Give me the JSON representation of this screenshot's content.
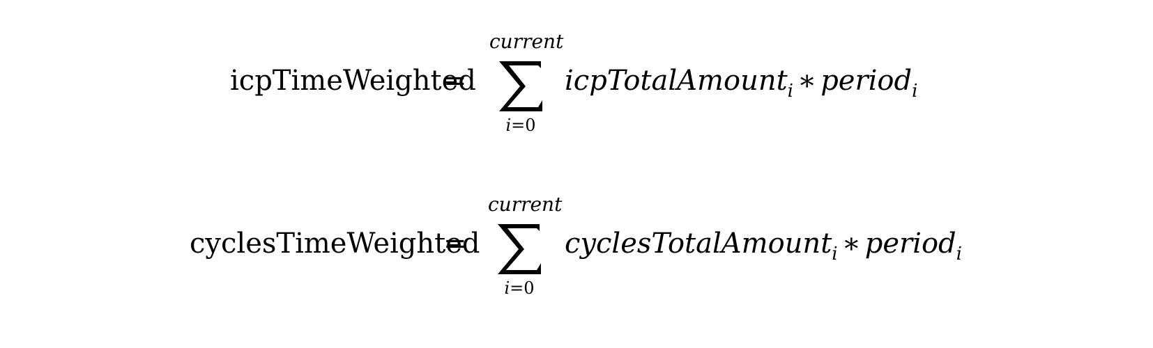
{
  "formulas": [
    {
      "lhs": "icpTimeWeighted",
      "equals": "=",
      "sum": {
        "upper": "current",
        "lower_var": "i",
        "lower_eq": "=",
        "lower_val": "0"
      },
      "term_name": "icpTotalAmount",
      "term_sub": "i",
      "operator": "∗",
      "factor_name": "period",
      "factor_sub": "i"
    },
    {
      "lhs": "cyclesTimeWeighted",
      "equals": "=",
      "sum": {
        "upper": "current",
        "lower_var": "i",
        "lower_eq": "=",
        "lower_val": "0"
      },
      "term_name": "cyclesTotalAmount",
      "term_sub": "i",
      "operator": "∗",
      "factor_name": "period",
      "factor_sub": "i"
    }
  ]
}
